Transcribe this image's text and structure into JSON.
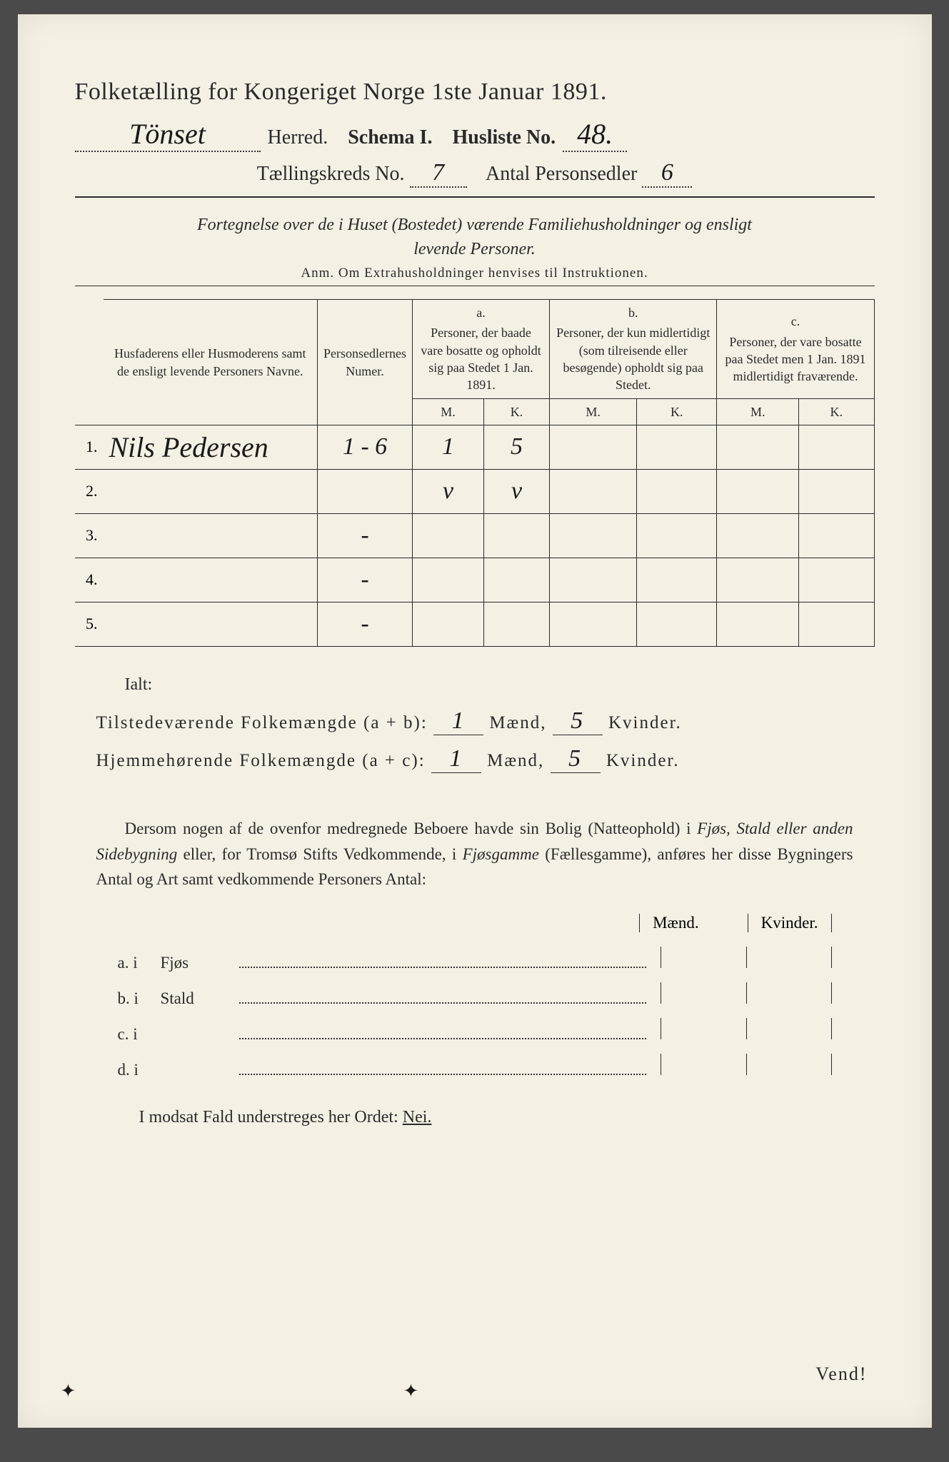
{
  "header": {
    "title": "Folketælling for Kongeriget Norge 1ste Januar 1891.",
    "herred_hw": "Tönset",
    "herred_label": "Herred.",
    "schema_label": "Schema I.",
    "husliste_label": "Husliste No.",
    "husliste_no_hw": "48.",
    "kreds_label": "Tællingskreds No.",
    "kreds_no_hw": "7",
    "antal_label": "Antal Personsedler",
    "antal_hw": "6"
  },
  "subhead": {
    "line1": "Fortegnelse over de i Huset (Bostedet) værende Familiehusholdninger og ensligt",
    "line2": "levende Personer.",
    "anm": "Anm. Om Extrahusholdninger henvises til Instruktionen."
  },
  "table": {
    "col_name": "Husfaderens eller Husmoderens samt de ensligt levende Personers Navne.",
    "col_num": "Personsedlernes Numer.",
    "col_a_label": "a.",
    "col_a_text": "Personer, der baade vare bosatte og opholdt sig paa Stedet 1 Jan. 1891.",
    "col_b_label": "b.",
    "col_b_text": "Personer, der kun midlertidigt (som tilreisende eller besøgende) opholdt sig paa Stedet.",
    "col_c_label": "c.",
    "col_c_text": "Personer, der vare bosatte paa Stedet men 1 Jan. 1891 midlertidigt fraværende.",
    "mk_m": "M.",
    "mk_k": "K.",
    "rows": [
      {
        "n": "1.",
        "name_hw": "Nils Pedersen",
        "num_hw": "1 - 6",
        "a_m": "1",
        "a_k": "5",
        "b_m": "",
        "b_k": "",
        "c_m": "",
        "c_k": ""
      },
      {
        "n": "2.",
        "name_hw": "",
        "num_hw": "",
        "a_m": "v",
        "a_k": "v",
        "b_m": "",
        "b_k": "",
        "c_m": "",
        "c_k": ""
      },
      {
        "n": "3.",
        "name_hw": "",
        "num_hw": "-",
        "a_m": "",
        "a_k": "",
        "b_m": "",
        "b_k": "",
        "c_m": "",
        "c_k": ""
      },
      {
        "n": "4.",
        "name_hw": "",
        "num_hw": "-",
        "a_m": "",
        "a_k": "",
        "b_m": "",
        "b_k": "",
        "c_m": "",
        "c_k": ""
      },
      {
        "n": "5.",
        "name_hw": "",
        "num_hw": "-",
        "a_m": "",
        "a_k": "",
        "b_m": "",
        "b_k": "",
        "c_m": "",
        "c_k": ""
      }
    ]
  },
  "totals": {
    "ialt": "Ialt:",
    "line_ab": "Tilstedeværende Folkemængde (a + b):",
    "line_ac": "Hjemmehørende Folkemængde (a + c):",
    "maend": "Mænd,",
    "kvinder": "Kvinder.",
    "ab_m_hw": "1",
    "ab_k_hw": "5",
    "ac_m_hw": "1",
    "ac_k_hw": "5"
  },
  "para": "Dersom nogen af de ovenfor medregnede Beboere havde sin Bolig (Natteophold) i Fjøs, Stald eller anden Sidebygning eller, for Tromsø Stifts Vedkommende, i Fjøsgamme (Fællesgamme), anføres her disse Bygningers Antal og Art samt vedkommende Personers Antal:",
  "buildings": {
    "maend": "Mænd.",
    "kvinder": "Kvinder.",
    "rows": [
      {
        "lbl": "a. i",
        "name": "Fjøs"
      },
      {
        "lbl": "b. i",
        "name": "Stald"
      },
      {
        "lbl": "c. i",
        "name": ""
      },
      {
        "lbl": "d. i",
        "name": ""
      }
    ]
  },
  "nei": {
    "text": "I modsat Fald understreges her Ordet:",
    "word": "Nei."
  },
  "vend": "Vend!",
  "colors": {
    "page_bg": "#f5f0e4",
    "ink": "#2a2a2a",
    "hw_ink": "#1a1a1a",
    "outer_bg": "#4a4a4a"
  }
}
